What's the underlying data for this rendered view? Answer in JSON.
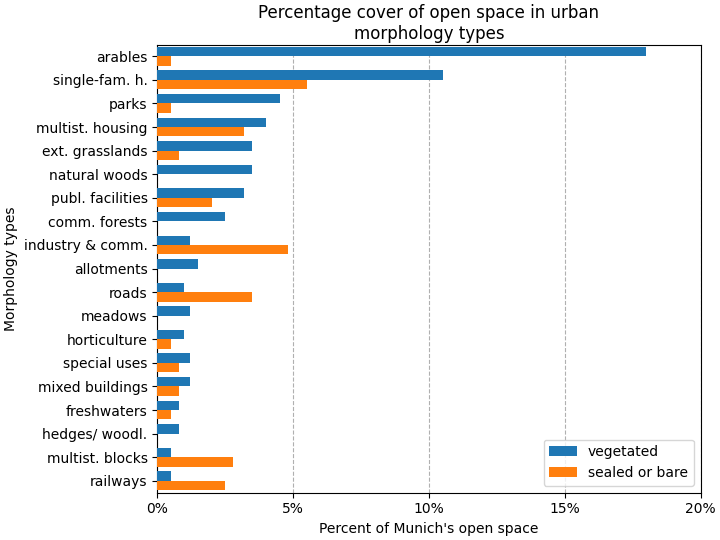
{
  "chart_data": {
    "type": "bar",
    "orientation": "horizontal",
    "title": "Percentage cover of open space in urban\nmorphology types",
    "xlabel": "Percent of Munich's open space",
    "ylabel": "Morphology types",
    "categories": [
      "arables",
      "single-fam. h.",
      "parks",
      "multist. housing",
      "ext. grasslands",
      "natural woods",
      "publ. facilities",
      "comm. forests",
      "industry & comm.",
      "allotments",
      "roads",
      "meadows",
      "horticulture",
      "special uses",
      "mixed buildings",
      "freshwaters",
      "hedges/ woodl.",
      "multist. blocks",
      "railways"
    ],
    "series": [
      {
        "name": "vegetated",
        "values": [
          18.0,
          10.5,
          4.5,
          4.0,
          3.5,
          3.5,
          3.2,
          2.5,
          1.2,
          1.5,
          1.0,
          1.2,
          1.0,
          1.2,
          1.2,
          0.8,
          0.8,
          0.5,
          0.5
        ]
      },
      {
        "name": "sealed or bare",
        "values": [
          0.5,
          5.5,
          0.5,
          3.2,
          0.8,
          0.0,
          2.0,
          0.0,
          4.8,
          0.0,
          3.5,
          0.0,
          0.5,
          0.8,
          0.8,
          0.5,
          0.0,
          2.8,
          2.5
        ]
      }
    ],
    "xlim": [
      0,
      20
    ],
    "xticks": [
      {
        "value": 0,
        "label": "0%"
      },
      {
        "value": 5,
        "label": "5%"
      },
      {
        "value": 10,
        "label": "10%"
      },
      {
        "value": 15,
        "label": "15%"
      },
      {
        "value": 20,
        "label": "20%"
      }
    ],
    "grid": true,
    "legend": "lower right"
  }
}
